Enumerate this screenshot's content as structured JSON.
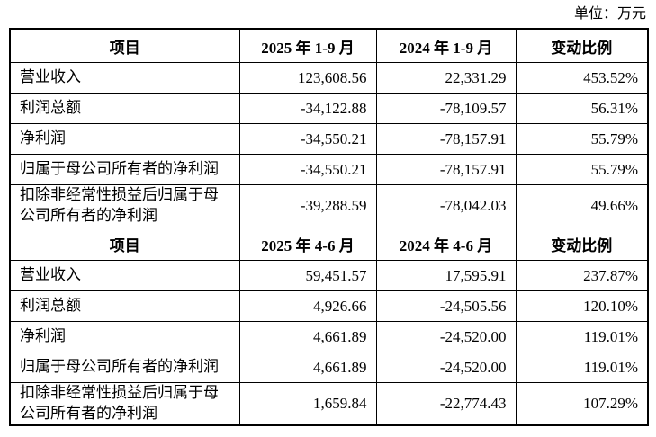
{
  "unit_label": "单位：万元",
  "table": {
    "sections": [
      {
        "header": {
          "c0": "项目",
          "c1": "2025 年 1-9 月",
          "c2": "2024 年 1-9 月",
          "c3": "变动比例"
        },
        "rows": [
          {
            "label": "营业收入",
            "v1": "123,608.56",
            "v2": "22,331.29",
            "pct": "453.52%"
          },
          {
            "label": "利润总额",
            "v1": "-34,122.88",
            "v2": "-78,109.57",
            "pct": "56.31%"
          },
          {
            "label": "净利润",
            "v1": "-34,550.21",
            "v2": "-78,157.91",
            "pct": "55.79%"
          },
          {
            "label": "归属于母公司所有者的净利润",
            "v1": "-34,550.21",
            "v2": "-78,157.91",
            "pct": "55.79%"
          },
          {
            "label": "扣除非经常性损益后归属于母公司所有者的净利润",
            "v1": "-39,288.59",
            "v2": "-78,042.03",
            "pct": "49.66%"
          }
        ]
      },
      {
        "header": {
          "c0": "项目",
          "c1": "2025 年 4-6 月",
          "c2": "2024 年 4-6 月",
          "c3": "变动比例"
        },
        "rows": [
          {
            "label": "营业收入",
            "v1": "59,451.57",
            "v2": "17,595.91",
            "pct": "237.87%"
          },
          {
            "label": "利润总额",
            "v1": "4,926.66",
            "v2": "-24,505.56",
            "pct": "120.10%"
          },
          {
            "label": "净利润",
            "v1": "4,661.89",
            "v2": "-24,520.00",
            "pct": "119.01%"
          },
          {
            "label": "归属于母公司所有者的净利润",
            "v1": "4,661.89",
            "v2": "-24,520.00",
            "pct": "119.01%"
          },
          {
            "label": "扣除非经常性损益后归属于母公司所有者的净利润",
            "v1": "1,659.84",
            "v2": "-22,774.43",
            "pct": "107.29%"
          }
        ]
      }
    ]
  }
}
